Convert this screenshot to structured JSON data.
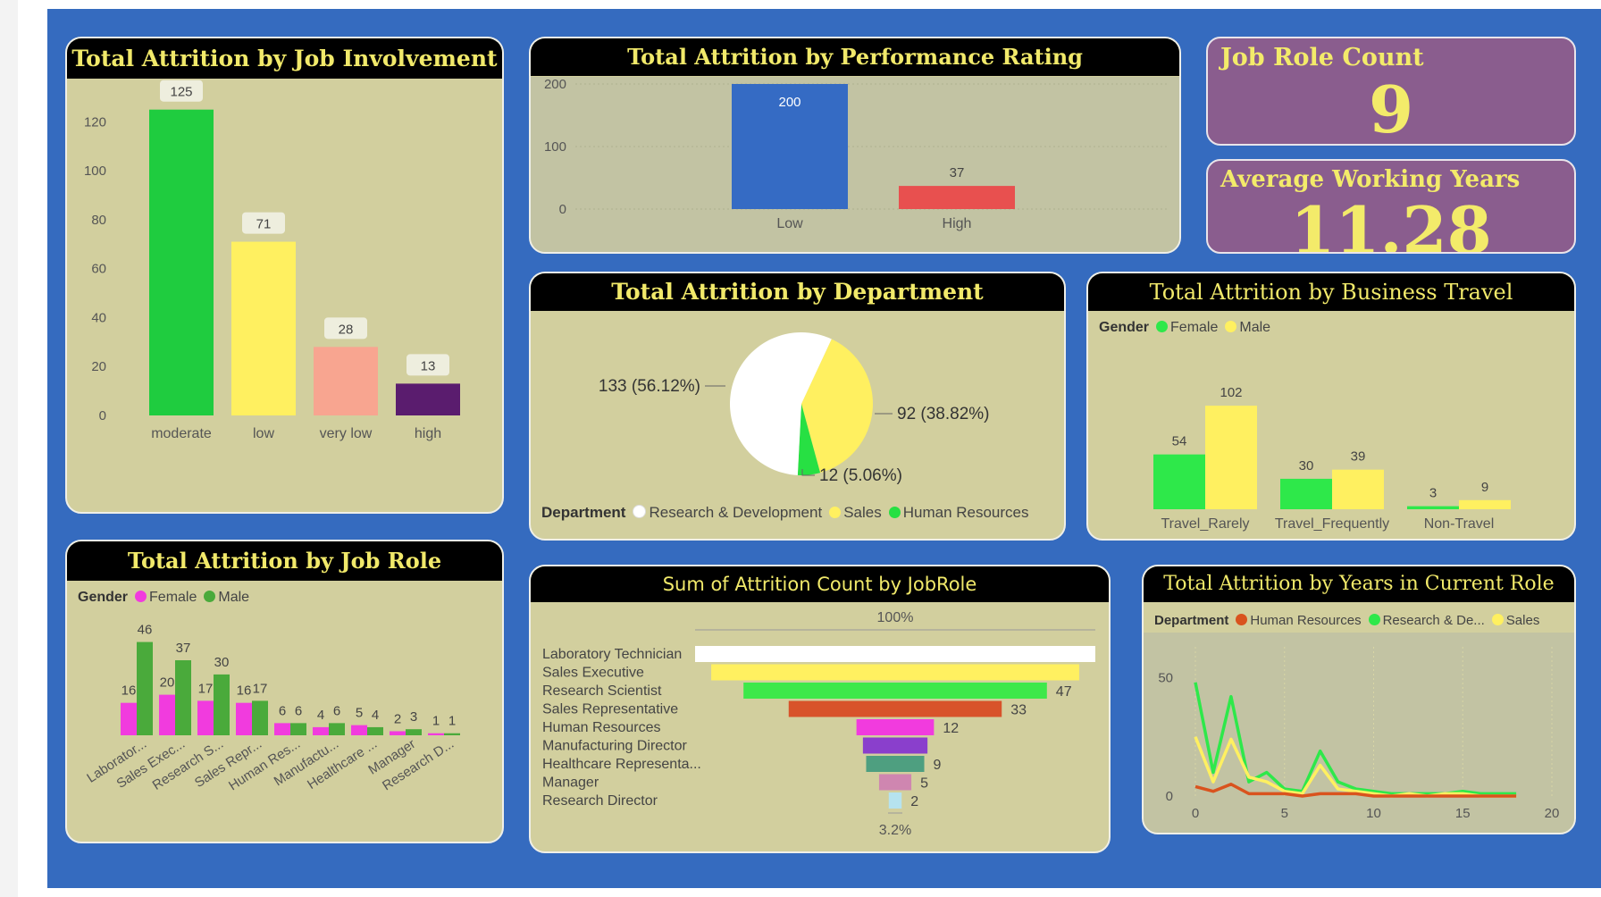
{
  "colors": {
    "background": "#356bbf",
    "card": "#d2cf9e",
    "title_bar": "#000000",
    "title_text": "#f1e96a",
    "kpi": "#8a5d8e"
  },
  "kpis": {
    "job_role_count": {
      "label": "Job Role Count",
      "value": "9"
    },
    "avg_working_years": {
      "label": "Average Working Years",
      "value": "11.28"
    }
  },
  "chart_data": [
    {
      "id": "job_involvement",
      "type": "bar",
      "title": "Total Attrition by Job Involvement",
      "categories": [
        "moderate",
        "low",
        "very low",
        "high"
      ],
      "values": [
        125,
        71,
        28,
        13
      ],
      "colors": [
        "#1fcc3f",
        "#fff060",
        "#f8a590",
        "#5a1c6e"
      ],
      "ylim": [
        0,
        130
      ],
      "yticks": [
        0,
        20,
        40,
        60,
        80,
        100,
        120
      ]
    },
    {
      "id": "performance_rating",
      "type": "bar",
      "title": "Total Attrition by Performance Rating",
      "categories": [
        "Low",
        "High"
      ],
      "values": [
        200,
        37
      ],
      "colors": [
        "#356bc4",
        "#e8504f"
      ],
      "ylim": [
        0,
        200
      ],
      "yticks": [
        0,
        100,
        200
      ]
    },
    {
      "id": "department",
      "type": "pie",
      "title": "Total Attrition by Department",
      "legend_title": "Department",
      "slices": [
        {
          "name": "Research & Development",
          "value": 133,
          "label": "133 (56.12%)",
          "color": "#ffffff"
        },
        {
          "name": "Sales",
          "value": 92,
          "label": "92 (38.82%)",
          "color": "#fff060"
        },
        {
          "name": "Human Resources",
          "value": 12,
          "label": "12 (5.06%)",
          "color": "#27e043"
        }
      ]
    },
    {
      "id": "business_travel",
      "type": "bar",
      "title": "Total Attrition by Business Travel",
      "legend_title": "Gender",
      "categories": [
        "Travel_Rarely",
        "Travel_Frequently",
        "Non-Travel"
      ],
      "series": [
        {
          "name": "Female",
          "values": [
            54,
            30,
            3
          ],
          "color": "#2ee84a"
        },
        {
          "name": "Male",
          "values": [
            102,
            39,
            9
          ],
          "color": "#fff060"
        }
      ],
      "ylim": [
        0,
        110
      ]
    },
    {
      "id": "job_role",
      "type": "bar",
      "title": "Total Attrition by Job Role",
      "legend_title": "Gender",
      "categories": [
        "Laborator...",
        "Sales Exec...",
        "Research S...",
        "Sales Repr...",
        "Human Res...",
        "Manufactu...",
        "Healthcare ...",
        "Manager",
        "Research D..."
      ],
      "series": [
        {
          "name": "Female",
          "values": [
            16,
            20,
            17,
            16,
            6,
            4,
            5,
            2,
            1
          ],
          "color": "#f13bde"
        },
        {
          "name": "Male",
          "values": [
            46,
            37,
            30,
            17,
            6,
            6,
            4,
            3,
            1
          ],
          "color": "#4aaa3b"
        }
      ],
      "ylim": [
        0,
        50
      ]
    },
    {
      "id": "funnel_jobrole",
      "type": "bar",
      "title": "Sum of Attrition Count by JobRole",
      "top_label": "100%",
      "bottom_label": "3.2%",
      "categories": [
        "Laboratory Technician",
        "Sales Executive",
        "Research Scientist",
        "Sales Representative",
        "Human Resources",
        "Manufacturing Director",
        "Healthcare Representa...",
        "Manager",
        "Research Director"
      ],
      "values": [
        62,
        57,
        47,
        33,
        12,
        10,
        9,
        5,
        2
      ],
      "value_labels": [
        "",
        "",
        "47",
        "33",
        "12",
        "",
        "9",
        "5",
        "2"
      ],
      "colors": [
        "#ffffff",
        "#fff060",
        "#3ee84a",
        "#d8532a",
        "#f13bde",
        "#8a3fcc",
        "#4e9f80",
        "#cf86b0",
        "#b6e3ef"
      ]
    },
    {
      "id": "years_current_role",
      "type": "line",
      "title": "Total Attrition by Years in Current Role",
      "legend_title": "Department",
      "x": [
        0,
        1,
        2,
        3,
        4,
        5,
        6,
        7,
        8,
        9,
        10,
        11,
        12,
        13,
        14,
        15,
        16,
        17,
        18
      ],
      "series": [
        {
          "name": "Human Resources",
          "color": "#d9531e",
          "values": [
            4,
            2,
            5,
            1,
            1,
            1,
            0,
            1,
            1,
            1,
            0,
            0,
            0,
            0,
            0,
            0,
            0,
            0,
            0
          ]
        },
        {
          "name": "Research & De...",
          "color": "#2ee84a",
          "values": [
            48,
            10,
            42,
            6,
            10,
            3,
            2,
            19,
            6,
            3,
            2,
            1,
            1,
            1,
            1,
            2,
            1,
            1,
            1
          ]
        },
        {
          "name": "Sales",
          "color": "#fff060",
          "values": [
            25,
            6,
            24,
            8,
            6,
            2,
            1,
            13,
            3,
            2,
            1,
            0,
            1,
            0,
            1,
            1,
            0,
            0,
            0
          ]
        }
      ],
      "xlim": [
        0,
        20
      ],
      "xticks": [
        0,
        5,
        10,
        15,
        20
      ],
      "ylim": [
        0,
        60
      ],
      "yticks": [
        0,
        50
      ]
    }
  ]
}
